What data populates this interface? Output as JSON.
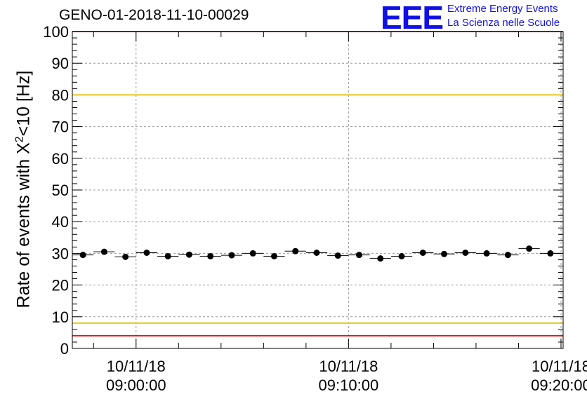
{
  "title": "GENO-01-2018-11-10-00029",
  "logo": {
    "mark": "EEE",
    "line1": "Extreme Energy Events",
    "line2": "La Scienza nelle Scuole"
  },
  "chart_data": {
    "type": "scatter",
    "title": "GENO-01-2018-11-10-00029",
    "ylabel": {
      "prefix": "Rate of events with X",
      "sup": "2",
      "suffix": "<10 [Hz]"
    },
    "xlabel": "",
    "ylim": [
      0,
      100
    ],
    "yticks": [
      0,
      10,
      20,
      30,
      40,
      50,
      60,
      70,
      80,
      90,
      100
    ],
    "xlim_minutes": [
      -3,
      20.1
    ],
    "xticks": [
      {
        "minutes": 0,
        "date": "10/11/18",
        "time": "09:00:00"
      },
      {
        "minutes": 10,
        "date": "10/11/18",
        "time": "09:10:00"
      },
      {
        "minutes": 20,
        "date": "10/11/18",
        "time": "09:20:00"
      }
    ],
    "grid": true,
    "bin_width_minutes": 1,
    "x_minutes": [
      -2.5,
      -1.5,
      -0.5,
      0.5,
      1.5,
      2.5,
      3.5,
      4.5,
      5.5,
      6.5,
      7.5,
      8.5,
      9.5,
      10.5,
      11.5,
      12.5,
      13.5,
      14.5,
      15.5,
      16.5,
      17.5,
      18.5,
      19.5
    ],
    "values": [
      29.5,
      30.5,
      28.9,
      30.2,
      29.1,
      29.6,
      29.1,
      29.4,
      30.0,
      29.1,
      30.7,
      30.2,
      29.3,
      29.5,
      28.4,
      29.1,
      30.2,
      29.8,
      30.2,
      30.0,
      29.5,
      31.5,
      30.0
    ],
    "reference_lines": [
      {
        "value": 100,
        "color": "#ee1111"
      },
      {
        "value": 80,
        "color": "#e8c81a"
      },
      {
        "value": 8,
        "color": "#e8c81a"
      },
      {
        "value": 4,
        "color": "#ee1111"
      }
    ]
  }
}
